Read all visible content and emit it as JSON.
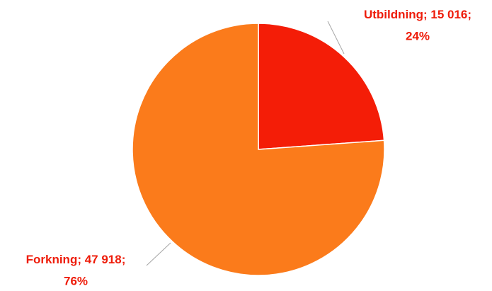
{
  "chart_data": {
    "type": "pie",
    "categories": [
      "Utbildning",
      "Forkning"
    ],
    "values": [
      15016,
      47918
    ],
    "value_labels": [
      "15 016",
      "47 918"
    ],
    "percent_labels": [
      "24%",
      "76%"
    ],
    "label_separator": "; ",
    "colors": [
      "#f41d07",
      "#fb7b1b"
    ],
    "start_angle": 0,
    "direction": "clockwise"
  }
}
